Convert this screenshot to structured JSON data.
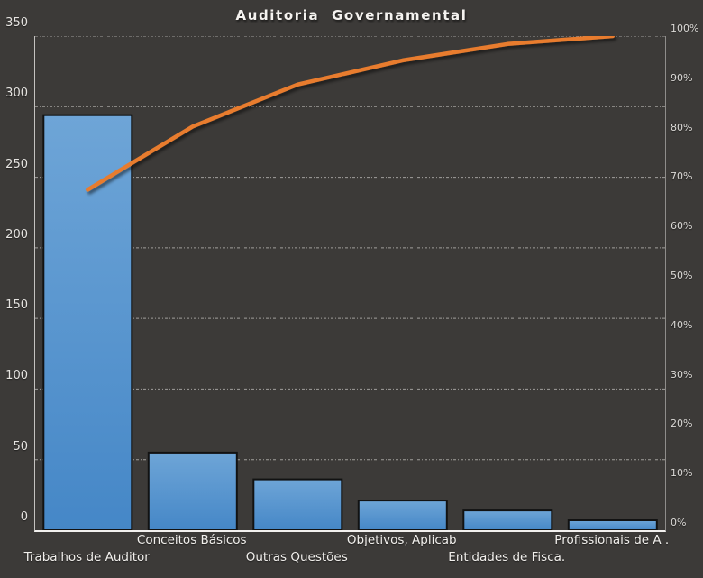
{
  "title": "Auditoria Governamental",
  "chart_data": {
    "type": "bar",
    "subtype": "pareto-with-cumulative-line",
    "title": "Auditoria Governamental",
    "categories": [
      "Trabalhos de Auditor",
      "Conceitos Básicos",
      "Outras Questões",
      "Objetivos, Aplicab",
      "Entidades de Fisca.",
      "Profissionais de A ."
    ],
    "bar_values": [
      294,
      55,
      36,
      21,
      14,
      7
    ],
    "cumulative_pct": [
      68.9,
      81.7,
      90.2,
      95.1,
      98.4,
      100
    ],
    "left_axis": {
      "min": 0,
      "max": 350,
      "step": 50,
      "tick_labels": [
        "350",
        "300",
        "250",
        "200",
        "150",
        "100",
        "50",
        "0"
      ]
    },
    "right_axis": {
      "min": 0,
      "max": 100,
      "step": 10,
      "tick_labels": [
        "100%",
        "90%",
        "80%",
        "70%",
        "60%",
        "50%",
        "40%",
        "30%",
        "20%",
        "10%",
        "0%"
      ]
    },
    "grid": {
      "horizontal": true,
      "style": "dash-dot",
      "vertical": false
    },
    "legend": "none",
    "colors": {
      "background": "#3c3a38",
      "bar_gradient_top": "#6ea5d7",
      "bar_gradient_bottom": "#4587c7",
      "bar_border": "#121212",
      "line": "#e87c2e",
      "gridline": "#b3b1ae",
      "axis_text": "#e6e4e1",
      "title_text": "#f5f3f0"
    }
  }
}
